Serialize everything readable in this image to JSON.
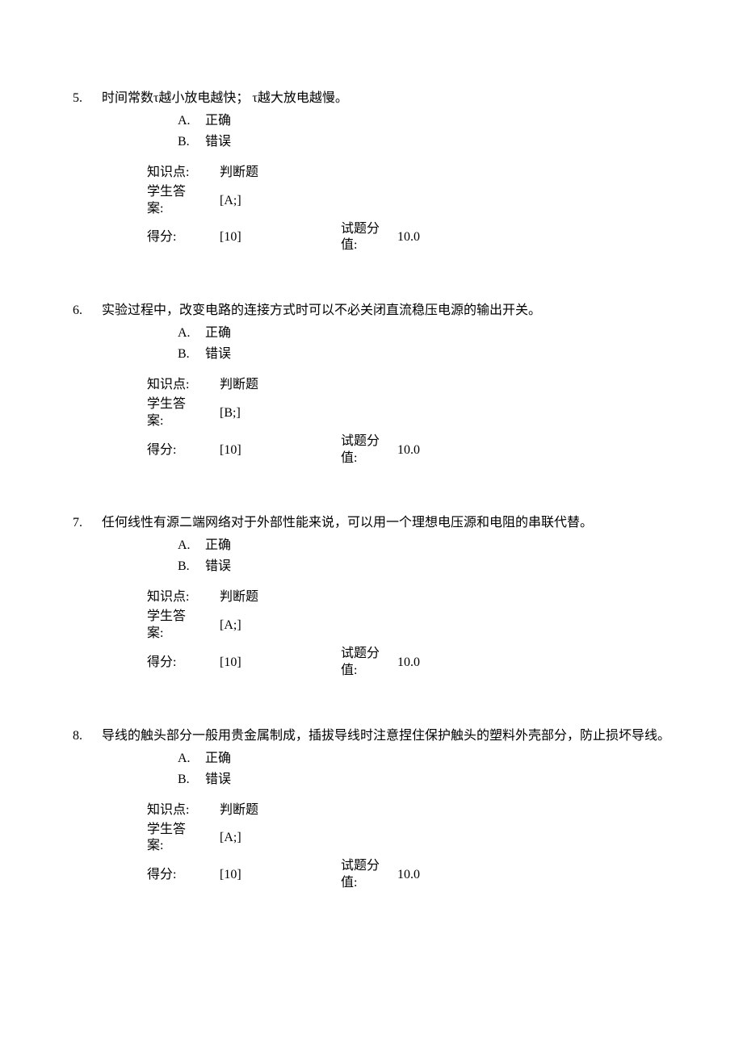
{
  "labels": {
    "knowledge_point": "知识点:",
    "knowledge_value": "判断题",
    "student_answer_line1": "学生答",
    "student_answer_line2": "案:",
    "score": "得分:",
    "question_value_line1": "试题分",
    "question_value_line2": "值:",
    "option_a": "A.",
    "option_b": "B.",
    "correct": "正确",
    "wrong": "错误"
  },
  "questions": [
    {
      "number": "5.",
      "text": "时间常数τ越小放电越快； τ越大放电越慢。",
      "answer": "[A;]",
      "score": "[10]",
      "value": "10.0"
    },
    {
      "number": "6.",
      "text": "实验过程中，改变电路的连接方式时可以不必关闭直流稳压电源的输出开关。",
      "answer": "[B;]",
      "score": "[10]",
      "value": "10.0"
    },
    {
      "number": "7.",
      "text": "任何线性有源二端网络对于外部性能来说，可以用一个理想电压源和电阻的串联代替。",
      "answer": "[A;]",
      "score": "[10]",
      "value": "10.0"
    },
    {
      "number": "8.",
      "text": "导线的触头部分一般用贵金属制成，插拔导线时注意捏住保护触头的塑料外壳部分，防止损坏导线。",
      "answer": "[A;]",
      "score": "[10]",
      "value": "10.0"
    }
  ]
}
